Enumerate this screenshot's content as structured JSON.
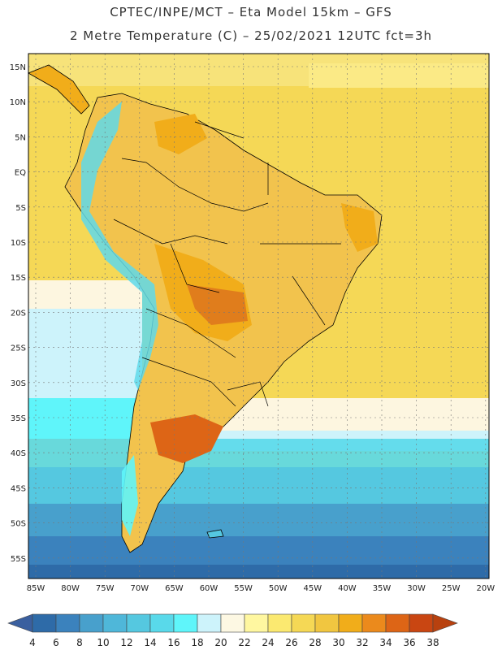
{
  "header": {
    "title_line1": "CPTEC/INPE/MCT –  Eta Model 15km – GFS",
    "title_line2": "2 Metre Temperature (C) – 25/02/2021 12UTC fct=3h"
  },
  "map": {
    "lat_labels": [
      "15N",
      "10N",
      "5N",
      "EQ",
      "5S",
      "10S",
      "15S",
      "20S",
      "25S",
      "30S",
      "35S",
      "40S",
      "45S",
      "50S",
      "55S"
    ],
    "lon_labels": [
      "85W",
      "80W",
      "75W",
      "70W",
      "65W",
      "60W",
      "55W",
      "50W",
      "45W",
      "40W",
      "35W",
      "30W",
      "25W",
      "20W"
    ]
  },
  "colorbar": {
    "labels": [
      "4",
      "6",
      "8",
      "10",
      "12",
      "14",
      "16",
      "18",
      "20",
      "22",
      "24",
      "26",
      "28",
      "30",
      "32",
      "34",
      "36",
      "38"
    ],
    "colors": [
      "#2e6ba8",
      "#3b82bd",
      "#48a0cc",
      "#4fb7d9",
      "#55c8e0",
      "#59d9ea",
      "#5ff5fa",
      "#cdf3fb",
      "#fdf8e3",
      "#fff7a0",
      "#fbe970",
      "#f5d855",
      "#f1c640",
      "#f1ad1a",
      "#eb8a1c",
      "#dd6516",
      "#c94612"
    ],
    "under_color": "#3a5f9f",
    "over_color": "#b8410f"
  },
  "colors": {
    "ocean_warm": "#f5d856",
    "land": "#f2c34d",
    "hot": "#e07d1c",
    "andes_cold": "#5fd9ea"
  }
}
